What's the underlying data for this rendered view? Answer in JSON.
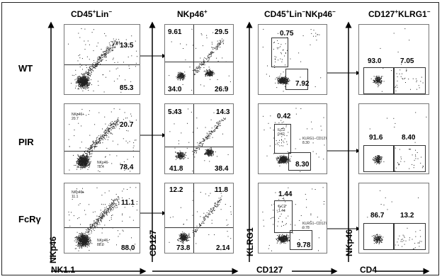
{
  "columns": [
    {
      "title_main": "CD45",
      "title_sup1": "+",
      "title_mid": "Lin",
      "title_sup2": "−"
    },
    {
      "title_main": "NKp46",
      "title_sup1": "+"
    },
    {
      "title_main": "CD45",
      "title_sup1": "+",
      "title_mid": "Lin",
      "title_sup2": "−",
      "title_tail": "NKp46",
      "title_sup3": "−"
    },
    {
      "title_main": "CD127",
      "title_sup1": "+",
      "title_mid": "KLRG1",
      "title_sup2": "−"
    }
  ],
  "rows": [
    "WT",
    "PIR",
    "FcRγ"
  ],
  "axes": {
    "col1_y": "NKp46",
    "col1_x": "NK1.1",
    "col2_y": "CD127",
    "col3_y": "KLRG1",
    "col3_x": "CD127",
    "col4_y": "NKp46",
    "col4_x": "CD4"
  },
  "panels": {
    "col1": [
      {
        "upper": "13.5",
        "lower": "85.3",
        "gate_upper": "",
        "gate_lower": ""
      },
      {
        "upper": "20.7",
        "lower": "78.4",
        "gate_upper": "NKp46+\n20.7",
        "gate_lower": "NKp46-\n78.4"
      },
      {
        "upper": "11.1",
        "lower": "88.0",
        "gate_upper": "NKp46+\n11.1",
        "gate_lower": "NKp46-\n88.0"
      }
    ],
    "col2": [
      {
        "ul": "9.61",
        "ur": "29.5",
        "ll": "34.0",
        "lr": "26.9"
      },
      {
        "ul": "5.43",
        "ur": "14.3",
        "ll": "41.8",
        "lr": "38.4"
      },
      {
        "ul": "12.2",
        "ur": "11.8",
        "ll": "73.8",
        "lr": "2.14"
      }
    ],
    "col3": [
      {
        "top": "0.75",
        "bottom": "7.92",
        "gate_top": "",
        "gate_bottom": ""
      },
      {
        "top": "0.42",
        "bottom": "8.30",
        "gate_top": "ILC2\n0.42",
        "gate_bottom": "KLRG1−CD127+\n8.30"
      },
      {
        "top": "1.44",
        "bottom": "9.78",
        "gate_top": "ILC2\n1.44",
        "gate_bottom": "KLRG1−CD127+\n9.78"
      }
    ],
    "col4": [
      {
        "left": "93.0",
        "right": "7.05"
      },
      {
        "left": "91.6",
        "right": "8.40"
      },
      {
        "left": "86.7",
        "right": "13.2"
      }
    ]
  }
}
